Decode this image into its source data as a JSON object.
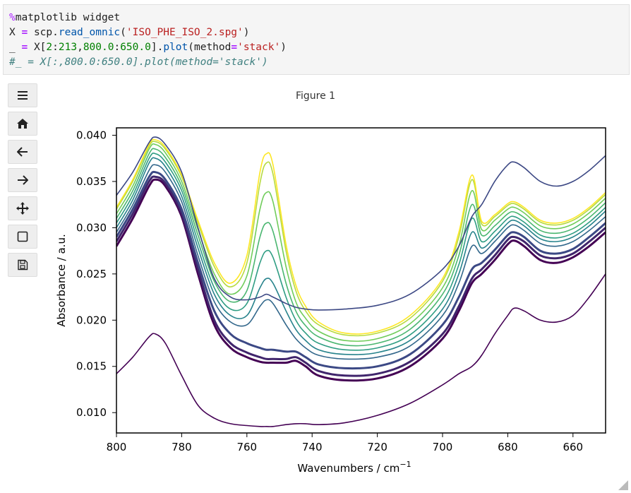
{
  "code_cell": {
    "line1": {
      "magic": "%",
      "rest": "matplotlib widget"
    },
    "line2": {
      "var": "X",
      "eq": "=",
      "obj": "scp.",
      "fn": "read_omnic",
      "open": "(",
      "str": "'ISO_PHE_ISO_2.spg'",
      "close": ")"
    },
    "line3": {
      "var": "_",
      "eq": "=",
      "a": "X[",
      "n1": "2",
      "c1": ":",
      "n2": "213",
      "c2": ",",
      "n3": "800.0",
      "c3": ":",
      "n4": "650.0",
      "b": "].",
      "fn": "plot",
      "c": "(method",
      "eq2": "=",
      "str": "'stack'",
      "close": ")"
    },
    "line4": {
      "comment": "#_ = X[:,800.0:650.0].plot(method='stack')"
    }
  },
  "toolbar": {
    "buttons": [
      {
        "name": "menu-icon"
      },
      {
        "name": "home-icon"
      },
      {
        "name": "back-icon"
      },
      {
        "name": "forward-icon"
      },
      {
        "name": "pan-icon"
      },
      {
        "name": "zoom-rect-icon"
      },
      {
        "name": "save-icon"
      }
    ]
  },
  "figure": {
    "title": "Figure 1"
  },
  "chart_data": {
    "type": "line",
    "xlabel": "Wavenumbers / cm",
    "xlabel_sup": "−1",
    "ylabel": "Absorbance / a.u.",
    "xlim": [
      800,
      650
    ],
    "ylim": [
      0.0078,
      0.0408
    ],
    "xticks": [
      800,
      780,
      760,
      740,
      720,
      700,
      680,
      660
    ],
    "yticks": [
      0.01,
      0.015,
      0.02,
      0.025,
      0.03,
      0.035,
      0.04
    ],
    "ytick_labels": [
      "0.010",
      "0.015",
      "0.020",
      "0.025",
      "0.030",
      "0.035",
      "0.040"
    ],
    "colormap": "viridis",
    "grid": false,
    "x": [
      800,
      795,
      790,
      788,
      785,
      780,
      775,
      770,
      765,
      760,
      756,
      754,
      752,
      748,
      745,
      742,
      738,
      730,
      720,
      710,
      700,
      695,
      691,
      688,
      684,
      680,
      678,
      675,
      670,
      665,
      660,
      655,
      650
    ],
    "series": [
      {
        "values": [
          0.0142,
          0.016,
          0.0182,
          0.0185,
          0.0175,
          0.014,
          0.0108,
          0.0094,
          0.0088,
          0.0086,
          0.0085,
          0.0085,
          0.0085,
          0.0087,
          0.0088,
          0.0088,
          0.0087,
          0.0089,
          0.0097,
          0.011,
          0.013,
          0.0142,
          0.015,
          0.0162,
          0.0185,
          0.0205,
          0.0213,
          0.021,
          0.02,
          0.0198,
          0.0205,
          0.0225,
          0.025
        ]
      },
      {
        "values": [
          0.028,
          0.031,
          0.0345,
          0.0352,
          0.0345,
          0.0312,
          0.025,
          0.0195,
          0.017,
          0.016,
          0.0155,
          0.0154,
          0.0154,
          0.0154,
          0.0156,
          0.015,
          0.014,
          0.0135,
          0.0137,
          0.015,
          0.018,
          0.021,
          0.024,
          0.025,
          0.0265,
          0.0282,
          0.0286,
          0.028,
          0.0265,
          0.0262,
          0.0268,
          0.028,
          0.0295
        ]
      },
      {
        "values": [
          0.0285,
          0.0315,
          0.035,
          0.0355,
          0.0348,
          0.0315,
          0.0255,
          0.02,
          0.0175,
          0.0165,
          0.016,
          0.0158,
          0.0158,
          0.0158,
          0.016,
          0.0154,
          0.0145,
          0.014,
          0.0142,
          0.0155,
          0.0185,
          0.0215,
          0.0245,
          0.0255,
          0.027,
          0.0287,
          0.029,
          0.0285,
          0.027,
          0.0267,
          0.0272,
          0.0285,
          0.03
        ]
      },
      {
        "values": [
          0.029,
          0.032,
          0.0355,
          0.036,
          0.0352,
          0.032,
          0.0262,
          0.021,
          0.0185,
          0.0175,
          0.017,
          0.0168,
          0.0168,
          0.0166,
          0.0166,
          0.016,
          0.0152,
          0.0148,
          0.015,
          0.0163,
          0.0195,
          0.0225,
          0.0255,
          0.0262,
          0.0276,
          0.0292,
          0.0295,
          0.029,
          0.0275,
          0.0272,
          0.0277,
          0.029,
          0.0305
        ]
      },
      {
        "values": [
          0.0295,
          0.0325,
          0.0362,
          0.0368,
          0.036,
          0.0328,
          0.027,
          0.022,
          0.0198,
          0.0195,
          0.0215,
          0.0222,
          0.0218,
          0.0195,
          0.018,
          0.017,
          0.0162,
          0.0158,
          0.016,
          0.0172,
          0.0205,
          0.024,
          0.028,
          0.0272,
          0.0285,
          0.03,
          0.0303,
          0.0297,
          0.0283,
          0.028,
          0.0285,
          0.0297,
          0.0312
        ]
      },
      {
        "values": [
          0.03,
          0.033,
          0.037,
          0.0375,
          0.0366,
          0.0334,
          0.0278,
          0.0228,
          0.0205,
          0.0205,
          0.0235,
          0.0245,
          0.024,
          0.021,
          0.019,
          0.0178,
          0.0168,
          0.0163,
          0.0165,
          0.0178,
          0.0212,
          0.025,
          0.0295,
          0.0278,
          0.029,
          0.0305,
          0.0308,
          0.0302,
          0.0288,
          0.0285,
          0.029,
          0.0302,
          0.0318
        ]
      },
      {
        "values": [
          0.0305,
          0.0335,
          0.0375,
          0.038,
          0.0371,
          0.034,
          0.0285,
          0.0235,
          0.0212,
          0.0218,
          0.0262,
          0.0275,
          0.0268,
          0.0225,
          0.02,
          0.0186,
          0.0175,
          0.0168,
          0.017,
          0.0184,
          0.022,
          0.026,
          0.031,
          0.0285,
          0.0296,
          0.031,
          0.0312,
          0.0306,
          0.0292,
          0.0289,
          0.0294,
          0.0306,
          0.0322
        ]
      },
      {
        "values": [
          0.031,
          0.034,
          0.038,
          0.0385,
          0.0376,
          0.0345,
          0.0292,
          0.0242,
          0.022,
          0.0232,
          0.029,
          0.0305,
          0.0296,
          0.024,
          0.021,
          0.0194,
          0.0182,
          0.0173,
          0.0175,
          0.019,
          0.0228,
          0.027,
          0.0325,
          0.0292,
          0.0302,
          0.0315,
          0.0317,
          0.0311,
          0.0297,
          0.0294,
          0.0299,
          0.0311,
          0.0327
        ]
      },
      {
        "values": [
          0.0315,
          0.0345,
          0.0385,
          0.039,
          0.0381,
          0.035,
          0.0298,
          0.025,
          0.0228,
          0.0248,
          0.032,
          0.0338,
          0.0328,
          0.0258,
          0.022,
          0.0202,
          0.0188,
          0.0178,
          0.018,
          0.0196,
          0.0235,
          0.028,
          0.034,
          0.0298,
          0.0308,
          0.032,
          0.0322,
          0.0316,
          0.0302,
          0.0299,
          0.0304,
          0.0316,
          0.0332
        ]
      },
      {
        "values": [
          0.032,
          0.035,
          0.0388,
          0.0393,
          0.0385,
          0.0355,
          0.0305,
          0.0258,
          0.0236,
          0.0262,
          0.0348,
          0.037,
          0.0358,
          0.0275,
          0.0232,
          0.021,
          0.0195,
          0.0184,
          0.0186,
          0.0202,
          0.0242,
          0.029,
          0.0352,
          0.0304,
          0.0312,
          0.0324,
          0.0326,
          0.032,
          0.0306,
          0.0303,
          0.0308,
          0.032,
          0.0336
        ]
      },
      {
        "values": [
          0.0322,
          0.0352,
          0.039,
          0.0395,
          0.0387,
          0.0357,
          0.0308,
          0.0262,
          0.024,
          0.027,
          0.036,
          0.038,
          0.0368,
          0.0282,
          0.0238,
          0.0215,
          0.0198,
          0.0186,
          0.0188,
          0.0205,
          0.0245,
          0.0295,
          0.0357,
          0.0307,
          0.0314,
          0.0326,
          0.0328,
          0.0322,
          0.0308,
          0.0305,
          0.031,
          0.0322,
          0.0338
        ]
      },
      {
        "values": [
          0.0335,
          0.036,
          0.0392,
          0.0398,
          0.039,
          0.036,
          0.03,
          0.0245,
          0.0225,
          0.0222,
          0.0225,
          0.0228,
          0.0225,
          0.0218,
          0.0214,
          0.0212,
          0.0211,
          0.0212,
          0.0216,
          0.0228,
          0.0255,
          0.028,
          0.0312,
          0.0325,
          0.035,
          0.0368,
          0.0371,
          0.0365,
          0.035,
          0.0345,
          0.035,
          0.0362,
          0.0378
        ]
      }
    ]
  }
}
